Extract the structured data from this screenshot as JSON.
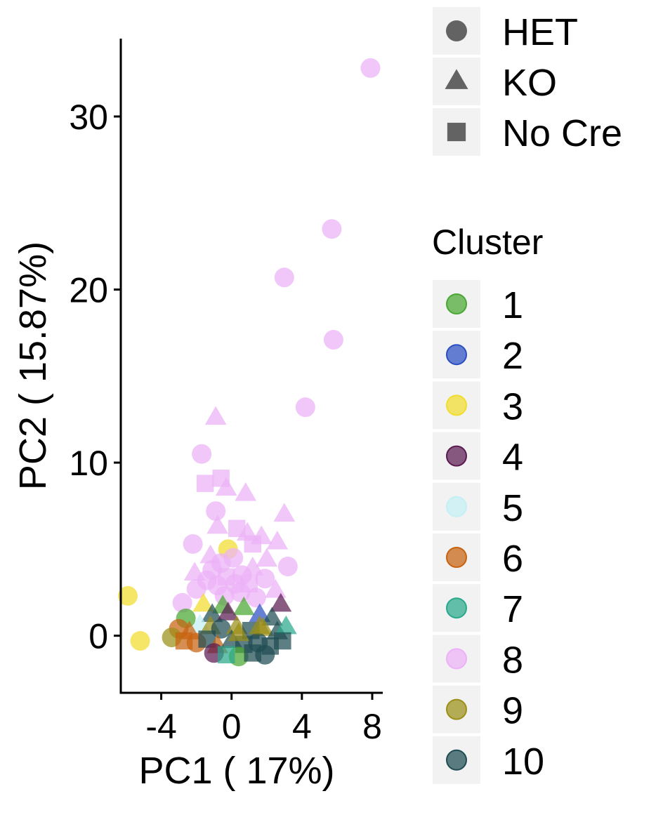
{
  "chart_data": {
    "type": "scatter",
    "xlabel": "PC1 ( 17%)",
    "ylabel": "PC2 ( 15.87%)",
    "xlim": [
      -6.3,
      8.6
    ],
    "ylim": [
      -3.3,
      34.5
    ],
    "x_ticks": [
      -4,
      0,
      4,
      8
    ],
    "x_tick_labels": [
      "-4",
      "0",
      "4",
      "8"
    ],
    "y_ticks": [
      0,
      10,
      20,
      30
    ],
    "y_tick_labels": [
      "0",
      "10",
      "20",
      "30"
    ],
    "grid": false,
    "legend_placement": "right",
    "shape_legend": {
      "title": "",
      "entries": [
        {
          "label": "HET",
          "shape": "circle"
        },
        {
          "label": "KO",
          "shape": "triangle"
        },
        {
          "label": "No Cre",
          "shape": "square"
        }
      ]
    },
    "color_legend": {
      "title": "Cluster",
      "entries": [
        {
          "label": "1",
          "color": "#4aa832"
        },
        {
          "label": "2",
          "color": "#2b4fc2"
        },
        {
          "label": "3",
          "color": "#f2dc2e"
        },
        {
          "label": "4",
          "color": "#5c1a52"
        },
        {
          "label": "5",
          "color": "#c3f0f5"
        },
        {
          "label": "6",
          "color": "#c8620f"
        },
        {
          "label": "7",
          "color": "#2aa88c"
        },
        {
          "label": "8",
          "color": "#ecb1f7"
        },
        {
          "label": "9",
          "color": "#9b8f18"
        },
        {
          "label": "10",
          "color": "#1f4c52"
        }
      ]
    },
    "points": [
      {
        "x": 7.9,
        "y": 32.8,
        "cluster": "8",
        "group": "HET"
      },
      {
        "x": 5.7,
        "y": 23.5,
        "cluster": "8",
        "group": "HET"
      },
      {
        "x": 3.0,
        "y": 20.7,
        "cluster": "8",
        "group": "HET"
      },
      {
        "x": 5.8,
        "y": 17.1,
        "cluster": "8",
        "group": "HET"
      },
      {
        "x": 4.2,
        "y": 13.2,
        "cluster": "8",
        "group": "HET"
      },
      {
        "x": -0.9,
        "y": 12.6,
        "cluster": "8",
        "group": "KO"
      },
      {
        "x": -1.7,
        "y": 10.5,
        "cluster": "8",
        "group": "HET"
      },
      {
        "x": -0.6,
        "y": 9.1,
        "cluster": "8",
        "group": "No Cre"
      },
      {
        "x": -1.5,
        "y": 8.8,
        "cluster": "8",
        "group": "No Cre"
      },
      {
        "x": -0.3,
        "y": 8.5,
        "cluster": "8",
        "group": "KO"
      },
      {
        "x": 0.8,
        "y": 8.2,
        "cluster": "8",
        "group": "KO"
      },
      {
        "x": -0.9,
        "y": 7.2,
        "cluster": "8",
        "group": "HET"
      },
      {
        "x": 3.0,
        "y": 7.0,
        "cluster": "8",
        "group": "KO"
      },
      {
        "x": -0.8,
        "y": 6.3,
        "cluster": "8",
        "group": "KO"
      },
      {
        "x": 0.3,
        "y": 6.2,
        "cluster": "8",
        "group": "No Cre"
      },
      {
        "x": 0.9,
        "y": 5.9,
        "cluster": "8",
        "group": "KO"
      },
      {
        "x": 1.7,
        "y": 5.7,
        "cluster": "8",
        "group": "KO"
      },
      {
        "x": 2.6,
        "y": 5.4,
        "cluster": "8",
        "group": "KO"
      },
      {
        "x": -2.2,
        "y": 5.3,
        "cluster": "8",
        "group": "HET"
      },
      {
        "x": 1.2,
        "y": 5.3,
        "cluster": "8",
        "group": "No Cre"
      },
      {
        "x": -0.2,
        "y": 5.0,
        "cluster": "3",
        "group": "HET"
      },
      {
        "x": -1.2,
        "y": 4.6,
        "cluster": "8",
        "group": "KO"
      },
      {
        "x": 0.1,
        "y": 4.5,
        "cluster": "8",
        "group": "HET"
      },
      {
        "x": 2.0,
        "y": 4.4,
        "cluster": "8",
        "group": "KO"
      },
      {
        "x": -0.6,
        "y": 4.2,
        "cluster": "8",
        "group": "HET"
      },
      {
        "x": 3.2,
        "y": 4.0,
        "cluster": "8",
        "group": "HET"
      },
      {
        "x": 1.2,
        "y": 3.9,
        "cluster": "8",
        "group": "KO"
      },
      {
        "x": -1.1,
        "y": 3.8,
        "cluster": "8",
        "group": "HET"
      },
      {
        "x": -2.1,
        "y": 3.6,
        "cluster": "8",
        "group": "KO"
      },
      {
        "x": 0.6,
        "y": 3.5,
        "cluster": "8",
        "group": "HET"
      },
      {
        "x": -0.3,
        "y": 3.4,
        "cluster": "8",
        "group": "No Cre"
      },
      {
        "x": 1.9,
        "y": 3.3,
        "cluster": "8",
        "group": "HET"
      },
      {
        "x": -1.4,
        "y": 3.2,
        "cluster": "8",
        "group": "HET"
      },
      {
        "x": 0.2,
        "y": 3.0,
        "cluster": "8",
        "group": "HET"
      },
      {
        "x": 1.0,
        "y": 3.0,
        "cluster": "8",
        "group": "No Cre"
      },
      {
        "x": -0.8,
        "y": 2.9,
        "cluster": "8",
        "group": "HET"
      },
      {
        "x": -2.0,
        "y": 2.7,
        "cluster": "8",
        "group": "HET"
      },
      {
        "x": 2.5,
        "y": 2.6,
        "cluster": "8",
        "group": "KO"
      },
      {
        "x": 0.5,
        "y": 2.5,
        "cluster": "8",
        "group": "HET"
      },
      {
        "x": -0.4,
        "y": 2.3,
        "cluster": "8",
        "group": "HET"
      },
      {
        "x": 1.4,
        "y": 2.2,
        "cluster": "8",
        "group": "HET"
      },
      {
        "x": -5.9,
        "y": 2.3,
        "cluster": "3",
        "group": "HET"
      },
      {
        "x": -5.2,
        "y": -0.3,
        "cluster": "3",
        "group": "HET"
      },
      {
        "x": -2.8,
        "y": 1.9,
        "cluster": "8",
        "group": "HET"
      },
      {
        "x": -1.6,
        "y": 1.8,
        "cluster": "3",
        "group": "KO"
      },
      {
        "x": -0.5,
        "y": 1.7,
        "cluster": "1",
        "group": "KO"
      },
      {
        "x": 0.7,
        "y": 1.6,
        "cluster": "1",
        "group": "KO"
      },
      {
        "x": 2.8,
        "y": 1.8,
        "cluster": "4",
        "group": "KO"
      },
      {
        "x": -2.6,
        "y": 1.0,
        "cluster": "1",
        "group": "HET"
      },
      {
        "x": -1.1,
        "y": 1.2,
        "cluster": "10",
        "group": "KO"
      },
      {
        "x": -0.2,
        "y": 1.3,
        "cluster": "4",
        "group": "KO"
      },
      {
        "x": 1.6,
        "y": 1.2,
        "cluster": "2",
        "group": "KO"
      },
      {
        "x": 2.3,
        "y": 1.0,
        "cluster": "10",
        "group": "KO"
      },
      {
        "x": -1.8,
        "y": 0.6,
        "cluster": "5",
        "group": "KO"
      },
      {
        "x": -3.0,
        "y": 0.4,
        "cluster": "6",
        "group": "HET"
      },
      {
        "x": -2.4,
        "y": 0.2,
        "cluster": "6",
        "group": "KO"
      },
      {
        "x": -1.2,
        "y": 0.5,
        "cluster": "9",
        "group": "KO"
      },
      {
        "x": -0.6,
        "y": 0.4,
        "cluster": "10",
        "group": "HET"
      },
      {
        "x": 0.3,
        "y": 0.5,
        "cluster": "9",
        "group": "KO"
      },
      {
        "x": 1.1,
        "y": 0.3,
        "cluster": "10",
        "group": "No Cre"
      },
      {
        "x": 1.8,
        "y": 0.4,
        "cluster": "9",
        "group": "KO"
      },
      {
        "x": 2.6,
        "y": 0.2,
        "cluster": "10",
        "group": "KO"
      },
      {
        "x": 3.1,
        "y": 0.5,
        "cluster": "7",
        "group": "KO"
      },
      {
        "x": -3.4,
        "y": -0.1,
        "cluster": "9",
        "group": "HET"
      },
      {
        "x": -2.7,
        "y": -0.3,
        "cluster": "6",
        "group": "No Cre"
      },
      {
        "x": -2.0,
        "y": -0.4,
        "cluster": "6",
        "group": "HET"
      },
      {
        "x": -1.4,
        "y": -0.2,
        "cluster": "10",
        "group": "No Cre"
      },
      {
        "x": -0.8,
        "y": -0.6,
        "cluster": "6",
        "group": "KO"
      },
      {
        "x": 0.0,
        "y": -0.3,
        "cluster": "10",
        "group": "KO"
      },
      {
        "x": 0.7,
        "y": -0.5,
        "cluster": "10",
        "group": "No Cre"
      },
      {
        "x": 1.5,
        "y": -0.4,
        "cluster": "10",
        "group": "HET"
      },
      {
        "x": 2.2,
        "y": -0.6,
        "cluster": "10",
        "group": "No Cre"
      },
      {
        "x": 2.9,
        "y": -0.3,
        "cluster": "10",
        "group": "No Cre"
      },
      {
        "x": -1.0,
        "y": -1.0,
        "cluster": "4",
        "group": "HET"
      },
      {
        "x": 0.4,
        "y": -1.2,
        "cluster": "1",
        "group": "HET"
      },
      {
        "x": 1.2,
        "y": -1.0,
        "cluster": "10",
        "group": "No Cre"
      },
      {
        "x": -0.3,
        "y": -1.1,
        "cluster": "7",
        "group": "No Cre"
      },
      {
        "x": 1.9,
        "y": -1.1,
        "cluster": "10",
        "group": "HET"
      },
      {
        "x": 0.4,
        "y": 0.1,
        "cluster": "9",
        "group": "KO"
      },
      {
        "x": 1.6,
        "y": 0.5,
        "cluster": "9",
        "group": "KO"
      }
    ]
  }
}
